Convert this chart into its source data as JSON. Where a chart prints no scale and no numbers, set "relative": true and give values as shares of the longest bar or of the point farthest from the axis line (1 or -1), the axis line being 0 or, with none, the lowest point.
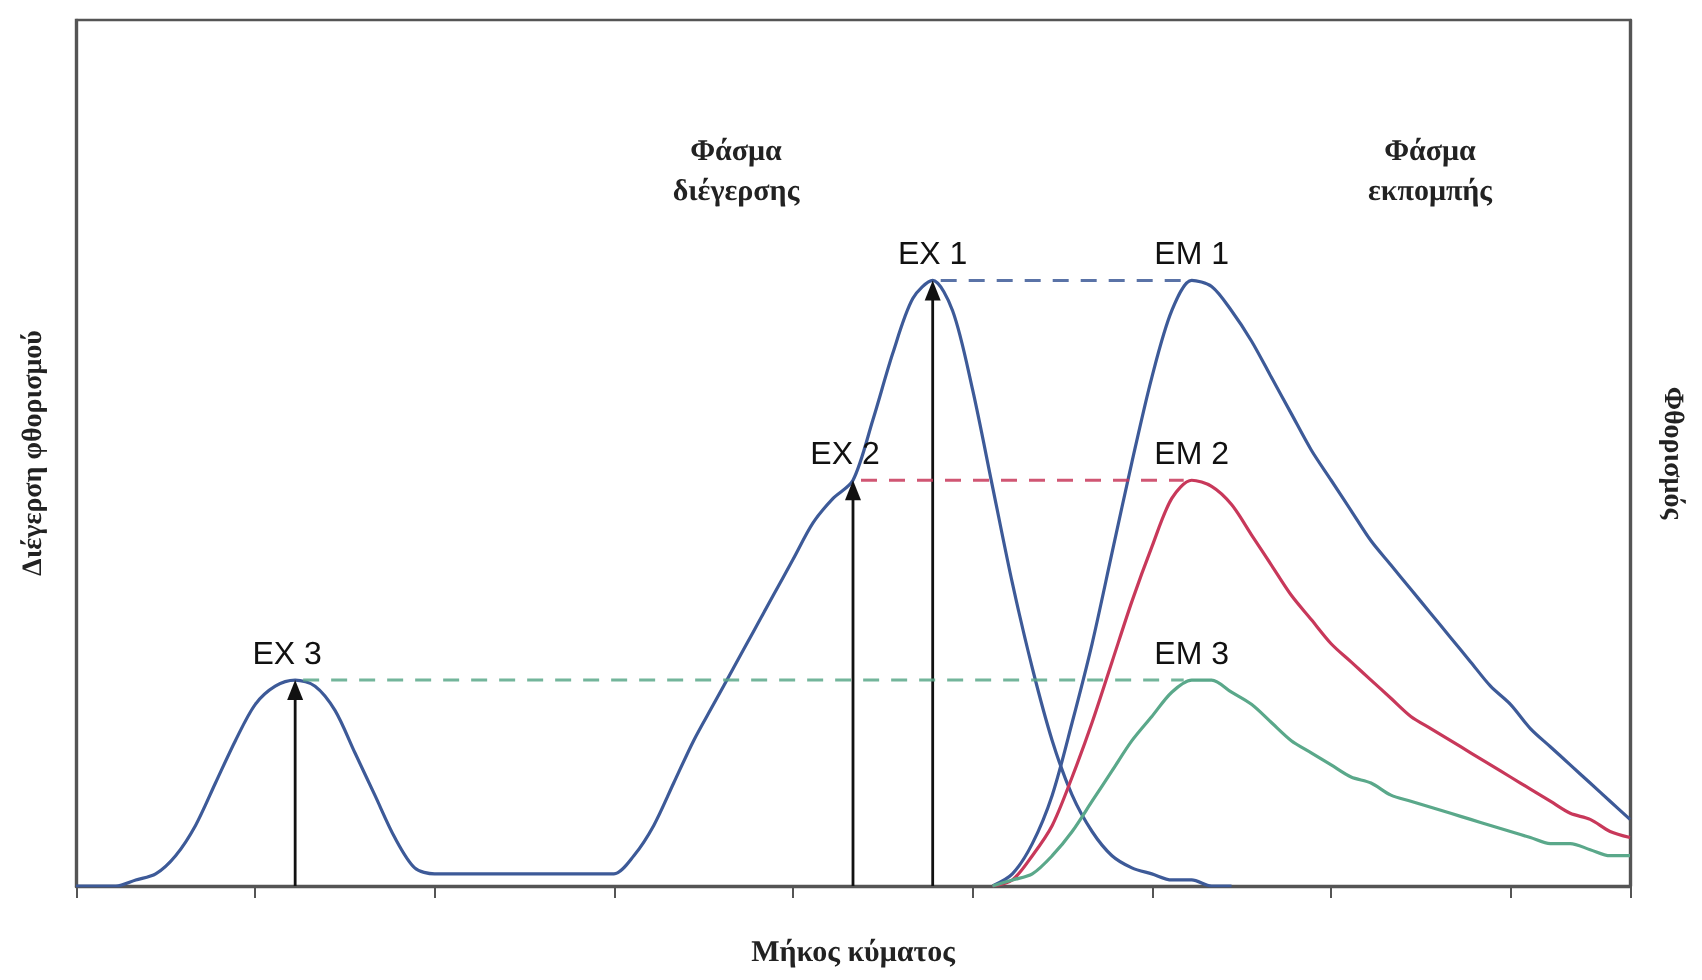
{
  "chart_data": {
    "type": "line",
    "relative": true,
    "xlabel": "Μήκος κύματος",
    "ylabel": "Διέγερση φθορισμού",
    "y2label": "Φθορισμός",
    "categories": [
      null,
      null,
      null,
      null,
      null,
      null,
      null,
      null,
      null,
      null,
      null,
      null,
      null,
      null,
      null,
      null,
      null,
      null,
      null,
      null,
      null,
      null,
      null,
      null,
      null,
      null,
      null,
      null,
      null,
      null,
      null,
      null,
      null,
      null,
      null,
      null,
      null,
      null,
      null,
      null,
      null,
      null,
      null,
      null,
      null,
      null,
      null,
      null,
      null,
      null,
      null,
      null,
      null,
      null,
      null,
      null,
      null,
      null,
      null,
      null,
      null,
      null,
      null,
      null,
      null,
      null,
      null,
      null,
      null,
      null,
      null,
      null,
      null,
      null,
      null,
      null,
      null,
      null,
      null
    ],
    "series": [
      {
        "color": "#3d5a98",
        "values": [
          0,
          0,
          0,
          0.01,
          0.02,
          0.05,
          0.1,
          0.17,
          0.24,
          0.3,
          0.33,
          0.34,
          0.33,
          0.29,
          0.22,
          0.15,
          0.08,
          0.03,
          0.02,
          0.02,
          0.02,
          0.02,
          0.02,
          0.02,
          0.02,
          0.02,
          0.02,
          0.02,
          0.05,
          0.1,
          0.17,
          0.24,
          0.3,
          0.36,
          0.42,
          0.48,
          0.54,
          0.6,
          0.64,
          0.67,
          0.77,
          0.88,
          0.97,
          1,
          0.95,
          0.82,
          0.66,
          0.5,
          0.36,
          0.24,
          0.15,
          0.09,
          0.05,
          0.03,
          0.02,
          0.01,
          0.01,
          0,
          0,
          null,
          null,
          null,
          null,
          null,
          null,
          null,
          null,
          null,
          null,
          null,
          null,
          null,
          null,
          null,
          null,
          null,
          null,
          null,
          null
        ]
      },
      {
        "color": "#3d5a98",
        "values": [
          null,
          null,
          null,
          null,
          null,
          null,
          null,
          null,
          null,
          null,
          null,
          null,
          null,
          null,
          null,
          null,
          null,
          null,
          null,
          null,
          null,
          null,
          null,
          null,
          null,
          null,
          null,
          null,
          null,
          null,
          null,
          null,
          null,
          null,
          null,
          null,
          null,
          null,
          null,
          null,
          null,
          null,
          null,
          null,
          null,
          null,
          0,
          0.02,
          0.07,
          0.15,
          0.27,
          0.4,
          0.55,
          0.7,
          0.84,
          0.95,
          1,
          0.99,
          0.95,
          0.9,
          0.84,
          0.78,
          0.72,
          0.67,
          0.62,
          0.57,
          0.53,
          0.49,
          0.45,
          0.41,
          0.37,
          0.33,
          0.3,
          0.26,
          0.23,
          0.2,
          0.17,
          0.14,
          0.11
        ]
      },
      {
        "color": "#c8385a",
        "values": [
          null,
          null,
          null,
          null,
          null,
          null,
          null,
          null,
          null,
          null,
          null,
          null,
          null,
          null,
          null,
          null,
          null,
          null,
          null,
          null,
          null,
          null,
          null,
          null,
          null,
          null,
          null,
          null,
          null,
          null,
          null,
          null,
          null,
          null,
          null,
          null,
          null,
          null,
          null,
          null,
          null,
          null,
          null,
          null,
          null,
          null,
          0,
          0.01,
          0.05,
          0.1,
          0.18,
          0.27,
          0.37,
          0.47,
          0.56,
          0.64,
          0.67,
          0.66,
          0.63,
          0.58,
          0.53,
          0.48,
          0.44,
          0.4,
          0.37,
          0.34,
          0.31,
          0.28,
          0.26,
          0.24,
          0.22,
          0.2,
          0.18,
          0.16,
          0.14,
          0.12,
          0.11,
          0.09,
          0.08
        ]
      },
      {
        "color": "#5aa88a",
        "values": [
          null,
          null,
          null,
          null,
          null,
          null,
          null,
          null,
          null,
          null,
          null,
          null,
          null,
          null,
          null,
          null,
          null,
          null,
          null,
          null,
          null,
          null,
          null,
          null,
          null,
          null,
          null,
          null,
          null,
          null,
          null,
          null,
          null,
          null,
          null,
          null,
          null,
          null,
          null,
          null,
          null,
          null,
          null,
          null,
          null,
          null,
          0,
          0.01,
          0.02,
          0.05,
          0.09,
          0.14,
          0.19,
          0.24,
          0.28,
          0.32,
          0.34,
          0.34,
          0.32,
          0.3,
          0.27,
          0.24,
          0.22,
          0.2,
          0.18,
          0.17,
          0.15,
          0.14,
          0.13,
          0.12,
          0.11,
          0.1,
          0.09,
          0.08,
          0.07,
          0.07,
          0.06,
          0.05,
          0.05
        ]
      }
    ],
    "annotations": [
      {
        "text": "EX 1",
        "y": 1
      },
      {
        "text": "EX 2",
        "y": 0.67
      },
      {
        "text": "EX 3",
        "y": 0.34
      },
      {
        "text": "EM 1",
        "y": 1
      },
      {
        "text": "EM 2",
        "y": 0.67
      },
      {
        "text": "EM 3",
        "y": 0.34
      },
      "Φάσμα διέγερσης",
      "Φάσμα εκπομπής"
    ],
    "grid": false,
    "marker": "none",
    "line_style": "solid"
  }
}
